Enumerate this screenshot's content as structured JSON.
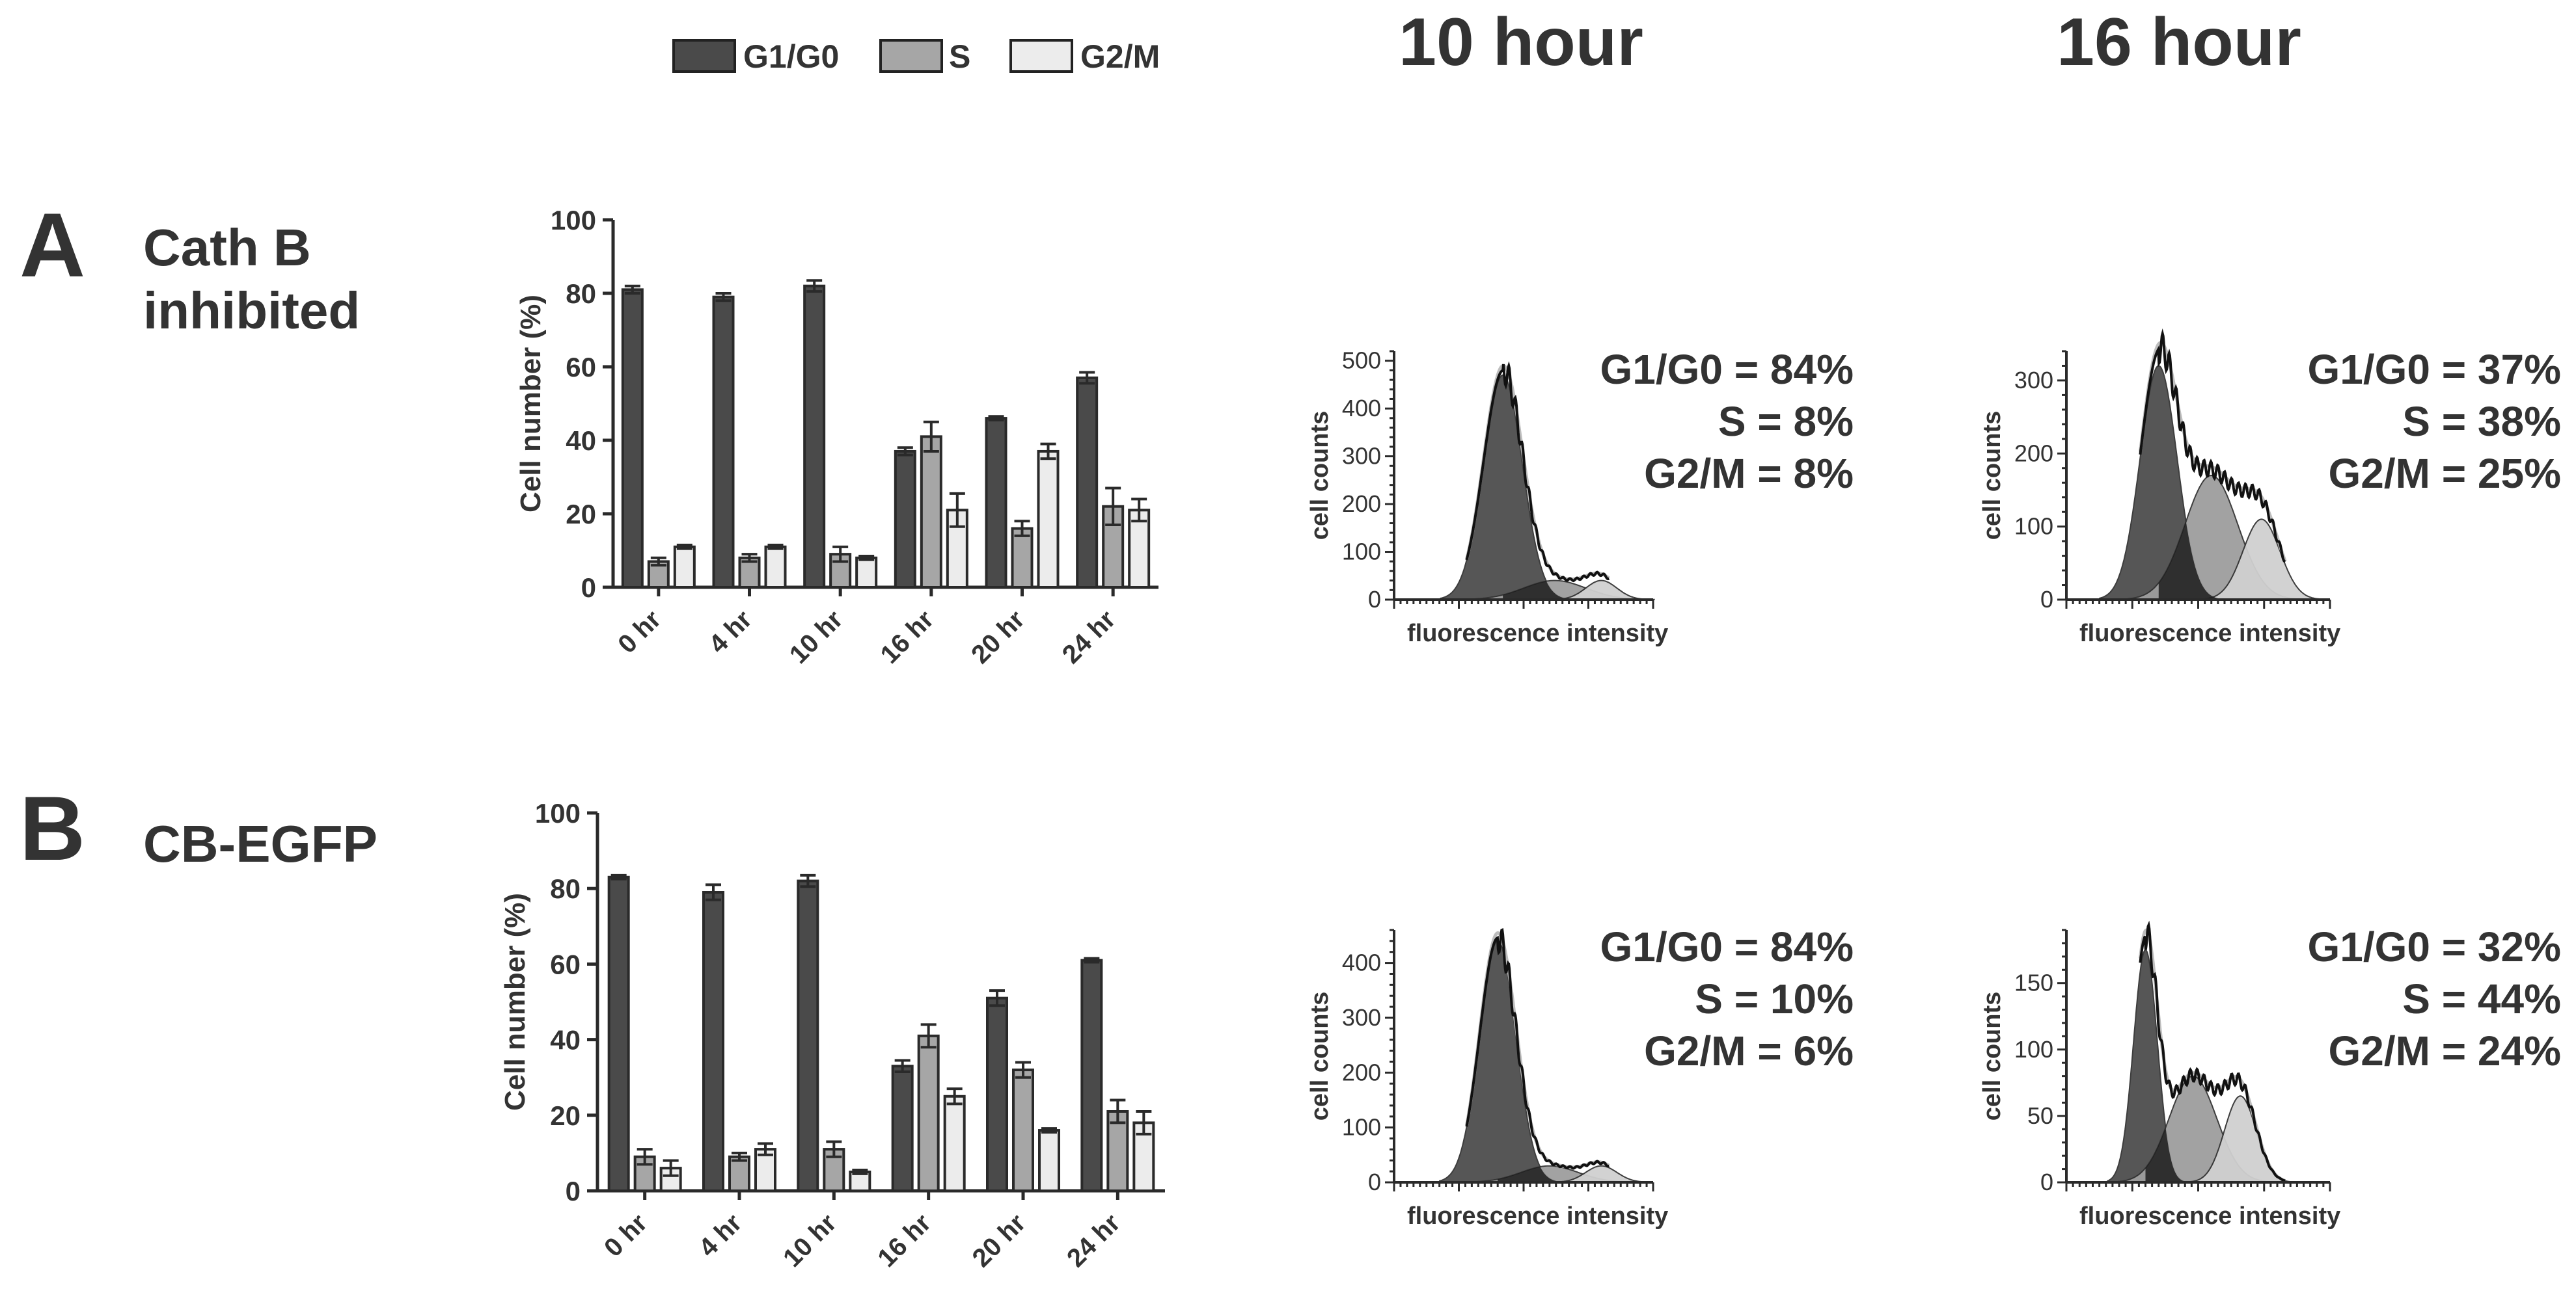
{
  "legend": [
    {
      "label": "G1/G0",
      "color": "#4a4a4a"
    },
    {
      "label": "S",
      "color": "#a6a6a6"
    },
    {
      "label": "G2/M",
      "color": "#ececec"
    }
  ],
  "column_titles": [
    "10 hour",
    "16 hour"
  ],
  "panels": [
    {
      "letter": "A",
      "title_lines": [
        "Cath B",
        "inhibited"
      ]
    },
    {
      "letter": "B",
      "title_lines": [
        "CB-EGFP"
      ]
    }
  ],
  "chart_data": [
    {
      "type": "bar",
      "panel": "A",
      "ylabel": "Cell number (%)",
      "xlabel": "",
      "ylim": [
        0,
        100
      ],
      "yticks": [
        0,
        20,
        40,
        60,
        80,
        100
      ],
      "categories": [
        "0 hr",
        "4 hr",
        "10 hr",
        "16 hr",
        "20 hr",
        "24 hr"
      ],
      "series": [
        {
          "name": "G1/G0",
          "values": [
            81,
            79,
            82,
            37,
            46,
            57
          ],
          "errors": [
            1,
            1,
            1.5,
            1,
            0.5,
            1.5
          ]
        },
        {
          "name": "S",
          "values": [
            7,
            8,
            9,
            41,
            16,
            22
          ],
          "errors": [
            1,
            1,
            2,
            4,
            2,
            5
          ]
        },
        {
          "name": "G2/M",
          "values": [
            11,
            11,
            8,
            21,
            37,
            21
          ],
          "errors": [
            0.5,
            0.5,
            0.5,
            4.5,
            2,
            3
          ]
        }
      ]
    },
    {
      "type": "bar",
      "panel": "B",
      "ylabel": "Cell number (%)",
      "xlabel": "",
      "ylim": [
        0,
        100
      ],
      "yticks": [
        0,
        20,
        40,
        60,
        80,
        100
      ],
      "categories": [
        "0 hr",
        "4 hr",
        "10 hr",
        "16 hr",
        "20 hr",
        "24 hr"
      ],
      "series": [
        {
          "name": "G1/G0",
          "values": [
            83,
            79,
            82,
            33,
            51,
            61
          ],
          "errors": [
            0.5,
            2,
            1.5,
            1.5,
            2,
            0.5
          ]
        },
        {
          "name": "S",
          "values": [
            9,
            9,
            11,
            41,
            32,
            21
          ],
          "errors": [
            2,
            1,
            2,
            3,
            2,
            3
          ]
        },
        {
          "name": "G2/M",
          "values": [
            6,
            11,
            5,
            25,
            16,
            18
          ],
          "errors": [
            2,
            1.5,
            0.5,
            2,
            0.5,
            3
          ]
        }
      ]
    },
    {
      "type": "area",
      "panel": "A",
      "time": "10 hour",
      "xlabel": "fluorescence intensity",
      "ylabel": "cell counts",
      "ylim": [
        0,
        520
      ],
      "yticks": [
        0,
        100,
        200,
        300,
        400,
        500
      ],
      "peaks": {
        "g1": 470,
        "s": 40,
        "g2": 40
      },
      "annotations": [
        "G1/G0 = 84%",
        "S = 8%",
        "G2/M = 8%"
      ]
    },
    {
      "type": "area",
      "panel": "A",
      "time": "16 hour",
      "xlabel": "fluorescence intensity",
      "ylabel": "cell counts",
      "ylim": [
        0,
        340
      ],
      "yticks": [
        0,
        100,
        200,
        300
      ],
      "peaks": {
        "g1": 320,
        "s": 170,
        "g2": 110
      },
      "annotations": [
        "G1/G0 = 37%",
        "S = 38%",
        "G2/M = 25%"
      ]
    },
    {
      "type": "area",
      "panel": "B",
      "time": "10 hour",
      "xlabel": "fluorescence intensity",
      "ylabel": "cell counts",
      "ylim": [
        0,
        460
      ],
      "yticks": [
        0,
        100,
        200,
        300,
        400
      ],
      "peaks": {
        "g1": 440,
        "s": 30,
        "g2": 30
      },
      "annotations": [
        "G1/G0 = 84%",
        "S = 10%",
        "G2/M = 6%"
      ]
    },
    {
      "type": "area",
      "panel": "B",
      "time": "16 hour",
      "xlabel": "fluorescence intensity",
      "ylabel": "cell counts",
      "ylim": [
        0,
        190
      ],
      "yticks": [
        0,
        50,
        100,
        150
      ],
      "peaks": {
        "g1": 175,
        "s": 80,
        "g2": 65
      },
      "annotations": [
        "G1/G0 = 32%",
        "S = 44%",
        "G2/M = 24%"
      ]
    }
  ]
}
